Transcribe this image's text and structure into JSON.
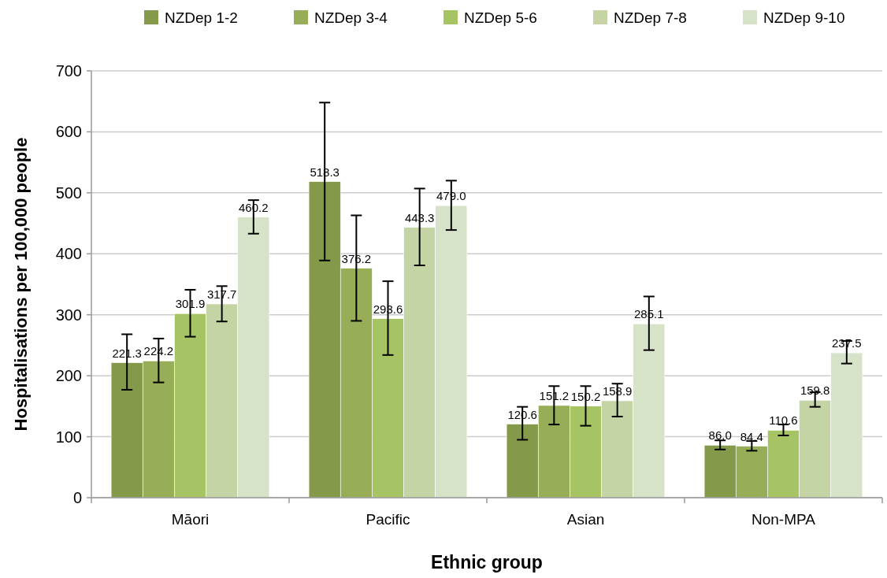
{
  "chart_data": {
    "type": "bar",
    "xlabel": "Ethnic group",
    "ylabel": "Hospitalisations per 100,000 people",
    "categories": [
      "Māori",
      "Pacific",
      "Asian",
      "Non-MPA"
    ],
    "series": [
      {
        "name": "NZDep 1-2",
        "color": "#84994a",
        "values": [
          221.3,
          518.3,
          120.6,
          86.0
        ],
        "value_labels": [
          "221.3",
          "518.3",
          "120.6",
          "86.0"
        ],
        "errors": [
          [
            177,
            268
          ],
          [
            389,
            648
          ],
          [
            95,
            149
          ],
          [
            79,
            94
          ]
        ]
      },
      {
        "name": "NZDep 3-4",
        "color": "#97ad57",
        "values": [
          224.2,
          376.2,
          151.2,
          84.4
        ],
        "value_labels": [
          "224.2",
          "376.2",
          "151.2",
          "84.4"
        ],
        "errors": [
          [
            189,
            261
          ],
          [
            290,
            463
          ],
          [
            120,
            183
          ],
          [
            77,
            93
          ]
        ]
      },
      {
        "name": "NZDep 5-6",
        "color": "#a7c464",
        "values": [
          301.9,
          293.6,
          150.2,
          110.6
        ],
        "value_labels": [
          "301.9",
          "293.6",
          "150.2",
          "110.6"
        ],
        "errors": [
          [
            264,
            341
          ],
          [
            234,
            355
          ],
          [
            118,
            183
          ],
          [
            102,
            120
          ]
        ]
      },
      {
        "name": "NZDep 7-8",
        "color": "#c4d4a4",
        "values": [
          317.7,
          443.3,
          158.9,
          159.8
        ],
        "value_labels": [
          "317.7",
          "443.3",
          "158.9",
          "159.8"
        ],
        "errors": [
          [
            289,
            347
          ],
          [
            381,
            507
          ],
          [
            133,
            187
          ],
          [
            149,
            173
          ]
        ]
      },
      {
        "name": "NZDep 9-10",
        "color": "#d7e3c8",
        "values": [
          460.2,
          479.0,
          285.1,
          237.5
        ],
        "value_labels": [
          "460.2",
          "479.0",
          "285.1",
          "237.5"
        ],
        "errors": [
          [
            433,
            488
          ],
          [
            439,
            520
          ],
          [
            242,
            330
          ],
          [
            220,
            257
          ]
        ]
      }
    ],
    "ylim": [
      0,
      700
    ],
    "yticks": [
      0,
      100,
      200,
      300,
      400,
      500,
      600,
      700
    ],
    "grid": "y",
    "legend": "top"
  }
}
